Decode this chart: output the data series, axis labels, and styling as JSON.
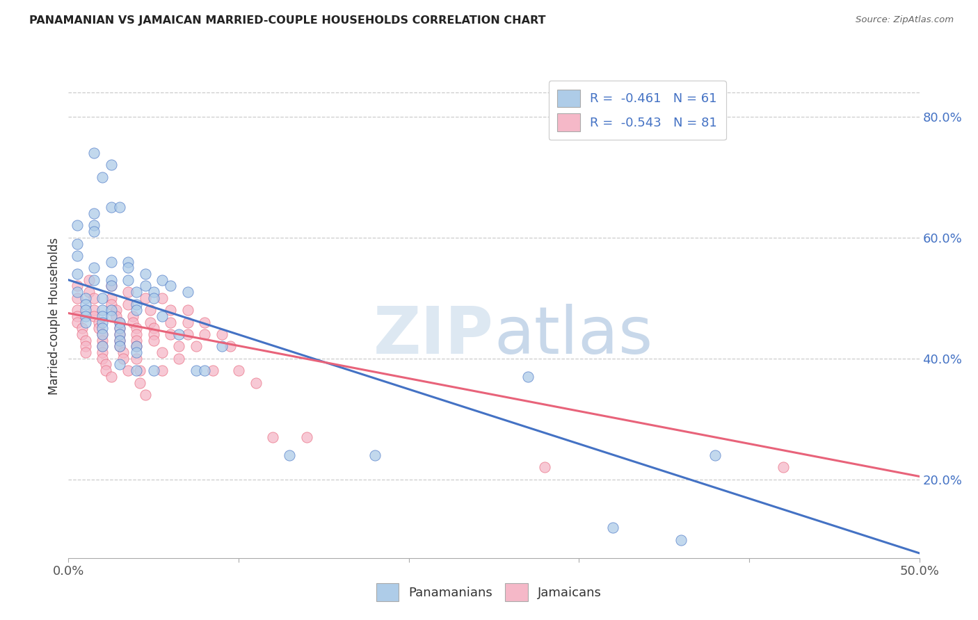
{
  "title": "PANAMANIAN VS JAMAICAN MARRIED-COUPLE HOUSEHOLDS CORRELATION CHART",
  "source": "Source: ZipAtlas.com",
  "ylabel": "Married-couple Households",
  "right_yticks": [
    "20.0%",
    "40.0%",
    "60.0%",
    "80.0%"
  ],
  "right_ytick_vals": [
    0.2,
    0.4,
    0.6,
    0.8
  ],
  "xlim": [
    0.0,
    0.5
  ],
  "ylim": [
    0.07,
    0.87
  ],
  "panama_R": -0.461,
  "panama_N": 61,
  "jamaica_R": -0.543,
  "jamaica_N": 81,
  "panama_color": "#aecce8",
  "jamaica_color": "#f5b8c8",
  "panama_line_color": "#4472c4",
  "jamaica_line_color": "#e8637a",
  "panama_scatter": [
    [
      0.005,
      0.62
    ],
    [
      0.005,
      0.59
    ],
    [
      0.005,
      0.57
    ],
    [
      0.005,
      0.54
    ],
    [
      0.005,
      0.51
    ],
    [
      0.01,
      0.5
    ],
    [
      0.01,
      0.49
    ],
    [
      0.01,
      0.48
    ],
    [
      0.01,
      0.47
    ],
    [
      0.01,
      0.46
    ],
    [
      0.015,
      0.64
    ],
    [
      0.015,
      0.62
    ],
    [
      0.015,
      0.61
    ],
    [
      0.015,
      0.55
    ],
    [
      0.015,
      0.53
    ],
    [
      0.02,
      0.5
    ],
    [
      0.02,
      0.48
    ],
    [
      0.02,
      0.47
    ],
    [
      0.02,
      0.46
    ],
    [
      0.02,
      0.45
    ],
    [
      0.02,
      0.44
    ],
    [
      0.02,
      0.42
    ],
    [
      0.025,
      0.65
    ],
    [
      0.025,
      0.56
    ],
    [
      0.025,
      0.53
    ],
    [
      0.025,
      0.52
    ],
    [
      0.025,
      0.48
    ],
    [
      0.025,
      0.47
    ],
    [
      0.03,
      0.46
    ],
    [
      0.03,
      0.45
    ],
    [
      0.03,
      0.44
    ],
    [
      0.03,
      0.43
    ],
    [
      0.03,
      0.42
    ],
    [
      0.03,
      0.39
    ],
    [
      0.035,
      0.56
    ],
    [
      0.035,
      0.55
    ],
    [
      0.035,
      0.53
    ],
    [
      0.04,
      0.51
    ],
    [
      0.04,
      0.49
    ],
    [
      0.04,
      0.48
    ],
    [
      0.04,
      0.42
    ],
    [
      0.04,
      0.41
    ],
    [
      0.04,
      0.38
    ],
    [
      0.045,
      0.54
    ],
    [
      0.045,
      0.52
    ],
    [
      0.05,
      0.51
    ],
    [
      0.05,
      0.5
    ],
    [
      0.05,
      0.38
    ],
    [
      0.055,
      0.53
    ],
    [
      0.055,
      0.47
    ],
    [
      0.06,
      0.52
    ],
    [
      0.065,
      0.44
    ],
    [
      0.07,
      0.51
    ],
    [
      0.075,
      0.38
    ],
    [
      0.08,
      0.38
    ],
    [
      0.09,
      0.42
    ],
    [
      0.13,
      0.24
    ],
    [
      0.18,
      0.24
    ],
    [
      0.27,
      0.37
    ],
    [
      0.32,
      0.12
    ],
    [
      0.36,
      0.1
    ],
    [
      0.38,
      0.24
    ]
  ],
  "panama_outliers": [
    [
      0.015,
      0.74
    ],
    [
      0.02,
      0.7
    ],
    [
      0.025,
      0.72
    ],
    [
      0.03,
      0.65
    ]
  ],
  "jamaica_scatter": [
    [
      0.005,
      0.52
    ],
    [
      0.005,
      0.5
    ],
    [
      0.005,
      0.48
    ],
    [
      0.005,
      0.47
    ],
    [
      0.005,
      0.46
    ],
    [
      0.008,
      0.45
    ],
    [
      0.008,
      0.44
    ],
    [
      0.01,
      0.43
    ],
    [
      0.01,
      0.42
    ],
    [
      0.01,
      0.41
    ],
    [
      0.012,
      0.53
    ],
    [
      0.012,
      0.51
    ],
    [
      0.015,
      0.5
    ],
    [
      0.015,
      0.48
    ],
    [
      0.015,
      0.47
    ],
    [
      0.018,
      0.46
    ],
    [
      0.018,
      0.45
    ],
    [
      0.02,
      0.44
    ],
    [
      0.02,
      0.43
    ],
    [
      0.02,
      0.42
    ],
    [
      0.02,
      0.41
    ],
    [
      0.02,
      0.4
    ],
    [
      0.022,
      0.39
    ],
    [
      0.022,
      0.38
    ],
    [
      0.025,
      0.37
    ],
    [
      0.025,
      0.52
    ],
    [
      0.025,
      0.5
    ],
    [
      0.025,
      0.49
    ],
    [
      0.028,
      0.48
    ],
    [
      0.028,
      0.47
    ],
    [
      0.03,
      0.46
    ],
    [
      0.03,
      0.45
    ],
    [
      0.03,
      0.44
    ],
    [
      0.03,
      0.43
    ],
    [
      0.03,
      0.42
    ],
    [
      0.032,
      0.41
    ],
    [
      0.032,
      0.4
    ],
    [
      0.035,
      0.38
    ],
    [
      0.035,
      0.51
    ],
    [
      0.035,
      0.49
    ],
    [
      0.038,
      0.47
    ],
    [
      0.038,
      0.46
    ],
    [
      0.04,
      0.45
    ],
    [
      0.04,
      0.44
    ],
    [
      0.04,
      0.43
    ],
    [
      0.04,
      0.42
    ],
    [
      0.04,
      0.4
    ],
    [
      0.042,
      0.38
    ],
    [
      0.042,
      0.36
    ],
    [
      0.045,
      0.34
    ],
    [
      0.045,
      0.5
    ],
    [
      0.048,
      0.48
    ],
    [
      0.048,
      0.46
    ],
    [
      0.05,
      0.45
    ],
    [
      0.05,
      0.44
    ],
    [
      0.05,
      0.43
    ],
    [
      0.055,
      0.41
    ],
    [
      0.055,
      0.38
    ],
    [
      0.055,
      0.5
    ],
    [
      0.06,
      0.48
    ],
    [
      0.06,
      0.46
    ],
    [
      0.06,
      0.44
    ],
    [
      0.065,
      0.42
    ],
    [
      0.065,
      0.4
    ],
    [
      0.07,
      0.48
    ],
    [
      0.07,
      0.46
    ],
    [
      0.07,
      0.44
    ],
    [
      0.075,
      0.42
    ],
    [
      0.08,
      0.46
    ],
    [
      0.08,
      0.44
    ],
    [
      0.085,
      0.38
    ],
    [
      0.09,
      0.44
    ],
    [
      0.095,
      0.42
    ],
    [
      0.1,
      0.38
    ],
    [
      0.11,
      0.36
    ],
    [
      0.12,
      0.27
    ],
    [
      0.14,
      0.27
    ],
    [
      0.28,
      0.22
    ],
    [
      0.42,
      0.22
    ]
  ],
  "panama_trendline": [
    [
      0.0,
      0.53
    ],
    [
      0.5,
      0.078
    ]
  ],
  "jamaica_trendline": [
    [
      0.0,
      0.475
    ],
    [
      0.5,
      0.205
    ]
  ],
  "watermark_zip": "ZIP",
  "watermark_atlas": "atlas"
}
